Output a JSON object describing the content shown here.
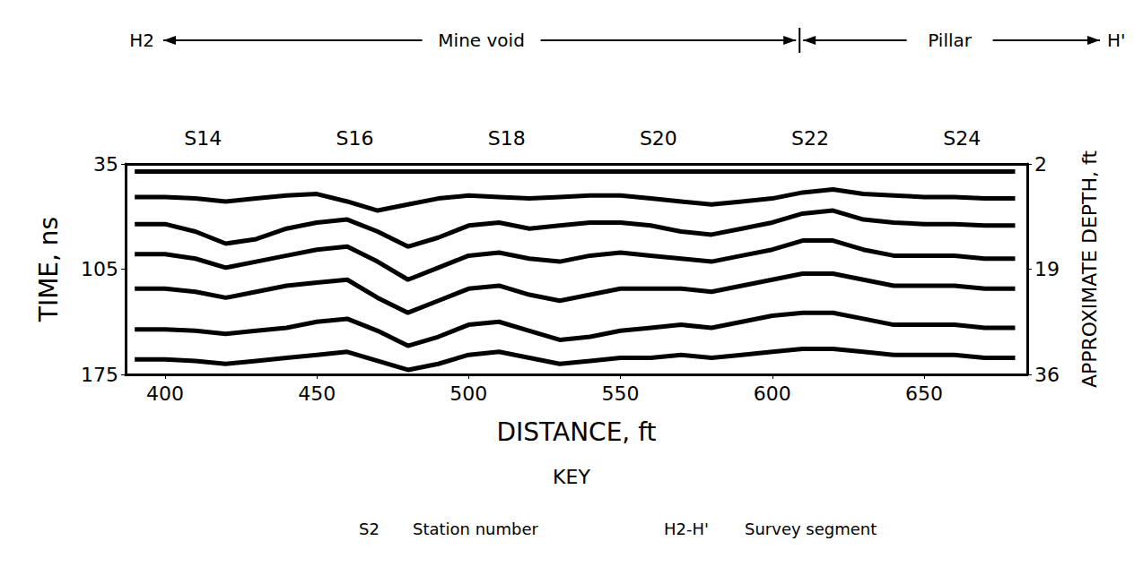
{
  "chart_data": {
    "type": "line",
    "xlabel": "DISTANCE, ft",
    "ylabel": "TIME, ns",
    "y2label": "APPROXIMATE DEPTH, ft",
    "x": [
      390,
      400,
      410,
      420,
      430,
      440,
      450,
      460,
      470,
      480,
      490,
      500,
      510,
      520,
      530,
      540,
      550,
      560,
      570,
      580,
      590,
      600,
      610,
      620,
      630,
      640,
      650,
      660,
      670,
      680
    ],
    "series": [
      {
        "color": "#000000",
        "values": [
          40,
          40,
          40,
          40,
          40,
          40,
          40,
          40,
          40,
          40,
          40,
          40,
          40,
          40,
          40,
          40,
          40,
          40,
          40,
          40,
          40,
          40,
          40,
          40,
          40,
          40,
          40,
          40,
          40,
          40
        ]
      },
      {
        "color": "#000000",
        "values": [
          57,
          57,
          58,
          60,
          58,
          56,
          55,
          60,
          66,
          62,
          58,
          56,
          57,
          58,
          57,
          56,
          56,
          58,
          60,
          62,
          60,
          58,
          54,
          52,
          55,
          56,
          57,
          57,
          58,
          58
        ]
      },
      {
        "color": "#000000",
        "values": [
          75,
          75,
          80,
          88,
          85,
          78,
          74,
          72,
          80,
          90,
          84,
          76,
          74,
          78,
          76,
          74,
          74,
          76,
          80,
          82,
          78,
          74,
          68,
          66,
          72,
          74,
          75,
          75,
          76,
          76
        ]
      },
      {
        "color": "#000000",
        "values": [
          95,
          95,
          98,
          104,
          100,
          96,
          92,
          90,
          100,
          112,
          104,
          96,
          94,
          98,
          100,
          96,
          94,
          96,
          98,
          100,
          96,
          92,
          86,
          86,
          92,
          96,
          96,
          96,
          98,
          98
        ]
      },
      {
        "color": "#000000",
        "values": [
          118,
          118,
          120,
          124,
          120,
          116,
          114,
          112,
          124,
          134,
          126,
          118,
          116,
          122,
          126,
          122,
          118,
          118,
          118,
          120,
          116,
          112,
          108,
          108,
          112,
          116,
          116,
          116,
          118,
          118
        ]
      },
      {
        "color": "#000000",
        "values": [
          145,
          145,
          146,
          148,
          146,
          144,
          140,
          138,
          146,
          156,
          150,
          142,
          140,
          146,
          152,
          150,
          146,
          144,
          142,
          144,
          140,
          136,
          134,
          134,
          138,
          142,
          142,
          142,
          144,
          144
        ]
      },
      {
        "color": "#000000",
        "values": [
          165,
          165,
          166,
          168,
          166,
          164,
          162,
          160,
          166,
          172,
          168,
          162,
          160,
          164,
          168,
          166,
          164,
          164,
          162,
          164,
          162,
          160,
          158,
          158,
          160,
          162,
          162,
          162,
          164,
          164
        ]
      }
    ],
    "marker": "none",
    "line_style": "solid",
    "grid": false,
    "xlim": [
      387,
      684
    ],
    "xticks": [
      400,
      450,
      500,
      550,
      600,
      650
    ],
    "ylim": [
      35,
      175
    ],
    "yticks": [
      35,
      105,
      175
    ],
    "y2lim": [
      2,
      36
    ],
    "y2ticks": [
      2,
      19,
      36
    ],
    "stations": {
      "labels": [
        "S14",
        "S16",
        "S18",
        "S20",
        "S22",
        "S24"
      ],
      "x": [
        412.5,
        462.5,
        512.5,
        562.5,
        612.5,
        662.5
      ]
    },
    "segment": {
      "start": "H2",
      "end": "H'",
      "zones": [
        "Mine void",
        "Pillar"
      ],
      "boundary": 609
    },
    "key": {
      "title": "KEY",
      "entries": [
        {
          "symbol": "S2",
          "label": "Station number"
        },
        {
          "symbol": "H2-H'",
          "label": "Survey segment"
        }
      ]
    }
  }
}
